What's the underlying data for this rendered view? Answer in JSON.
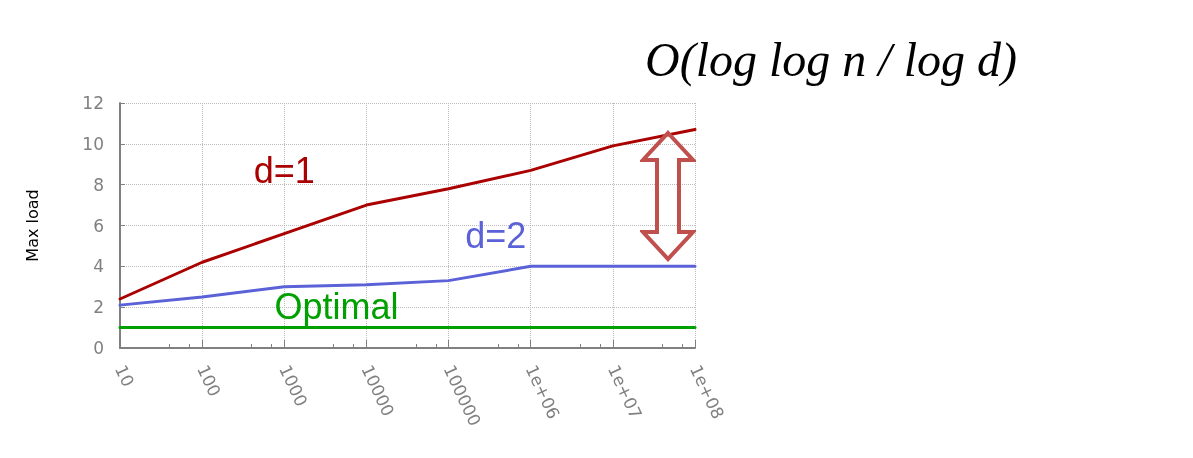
{
  "chart_data": {
    "type": "line",
    "ylabel": "Max load",
    "annotations": [
      "O(log log n / log d)"
    ],
    "x": [
      10,
      100,
      1000,
      10000,
      100000,
      1000000,
      10000000,
      100000000
    ],
    "series": [
      {
        "name": "d=1",
        "color": "#aa0000",
        "values": [
          2.4,
          4.2,
          5.6,
          7.0,
          7.8,
          8.7,
          9.9,
          10.7
        ]
      },
      {
        "name": "d=2",
        "color": "#5b62d8",
        "values": [
          2.1,
          2.5,
          3.0,
          3.1,
          3.3,
          4.0,
          4.0,
          4.0
        ]
      },
      {
        "name": "Optimal",
        "color": "#00a000",
        "values": [
          1,
          1,
          1,
          1,
          1,
          1,
          1,
          1
        ]
      }
    ],
    "log": "x",
    "xlim": [
      10,
      100000000
    ],
    "xticks": [
      10,
      100,
      1000,
      10000,
      100000,
      {
        "value": 1000000,
        "label": "1e+06"
      },
      {
        "value": 10000000,
        "label": "1e+07"
      },
      {
        "value": 100000000,
        "label": "1e+08"
      }
    ],
    "ylim": [
      0,
      12
    ],
    "yticks": [
      0,
      2,
      4,
      6,
      8,
      10,
      12
    ],
    "grid": true,
    "legend": false,
    "marker": "none",
    "line_style": "solid"
  }
}
